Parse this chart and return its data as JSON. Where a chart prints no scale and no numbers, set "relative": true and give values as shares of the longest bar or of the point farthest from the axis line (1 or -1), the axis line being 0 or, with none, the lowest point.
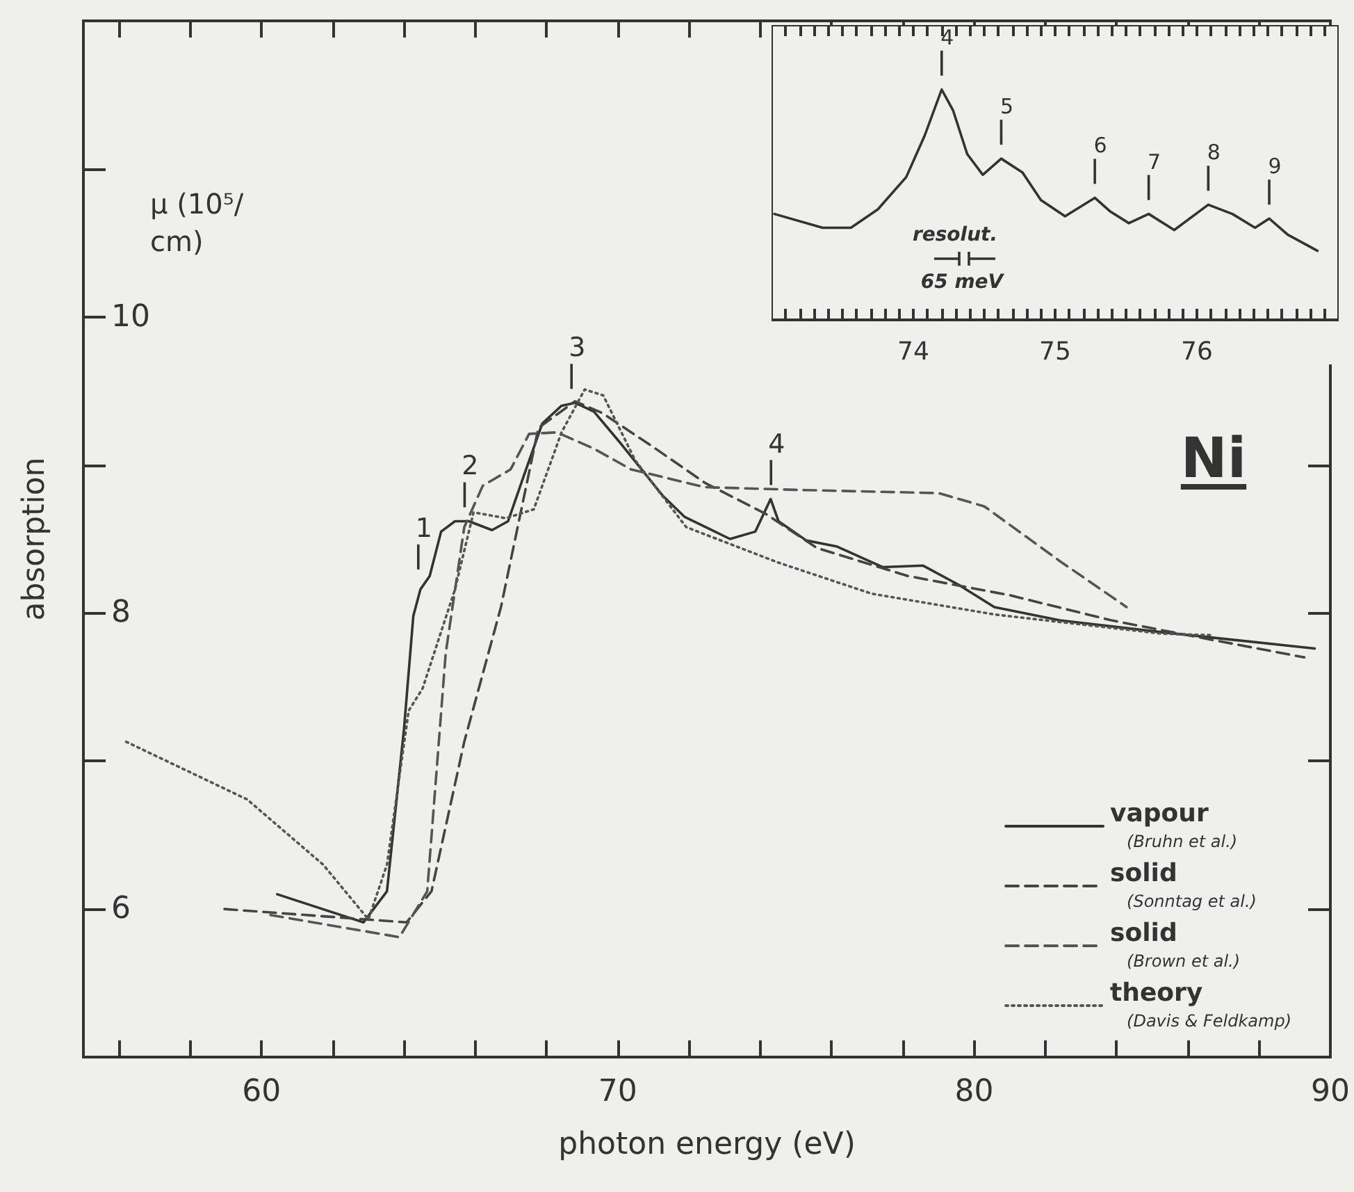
{
  "chart_data": [
    {
      "type": "line",
      "xlabel": "photon energy (eV)",
      "ylabel": "absorption",
      "xlim": [
        55,
        90
      ],
      "xticks": [
        {
          "value": 56,
          "label": null
        },
        {
          "value": 58,
          "label": null
        },
        60,
        {
          "value": 62,
          "label": null
        },
        {
          "value": 64,
          "label": null
        },
        {
          "value": 66,
          "label": null
        },
        {
          "value": 68,
          "label": null
        },
        70,
        {
          "value": 72,
          "label": null
        },
        {
          "value": 74,
          "label": null
        },
        {
          "value": 76,
          "label": null
        },
        {
          "value": 78,
          "label": null
        },
        80,
        {
          "value": 82,
          "label": null
        },
        {
          "value": 84,
          "label": null
        },
        {
          "value": 86,
          "label": null
        },
        {
          "value": 88,
          "label": null
        },
        90
      ],
      "ylim": [
        5,
        12
      ],
      "yticks": [
        6,
        {
          "value": 7,
          "label": null
        },
        8,
        {
          "value": 9,
          "label": null
        },
        10,
        {
          "value": 11,
          "label": null
        }
      ],
      "legend": "bottom right",
      "marker": "none",
      "series": [
        {
          "name": "vapour (Bruhn et al.)",
          "color": "#333333",
          "line_style": "solid",
          "x": [
            60.44,
            62.86,
            63.52,
            64.0,
            64.26,
            64.46,
            64.72,
            65.04,
            65.43,
            65.82,
            66.47,
            66.92,
            67.38,
            67.88,
            68.42,
            68.8,
            69.33,
            70.1,
            71.27,
            71.87,
            73.15,
            73.86,
            74.29,
            74.51,
            75.29,
            76.14,
            77.43,
            78.57,
            79.57,
            80.57,
            82.41,
            85.28,
            89.56
          ],
          "values": [
            6.1,
            5.91,
            6.12,
            7.22,
            7.98,
            8.16,
            8.25,
            8.55,
            8.62,
            8.62,
            8.56,
            8.62,
            8.94,
            9.28,
            9.4,
            9.42,
            9.36,
            9.14,
            8.79,
            8.65,
            8.5,
            8.55,
            8.77,
            8.62,
            8.49,
            8.45,
            8.31,
            8.32,
            8.19,
            8.04,
            7.95,
            7.87,
            7.76
          ]
        },
        {
          "name": "solid (Sonntag et al.)",
          "color": "#444444",
          "line_style": "dashed",
          "x": [
            58.96,
            64.07,
            64.77,
            65.69,
            66.72,
            67.77,
            68.8,
            69.57,
            71.0,
            72.44,
            74.15,
            75.58,
            78.14,
            81.0,
            83.86,
            86.0,
            89.27
          ],
          "values": [
            6.0,
            5.91,
            6.12,
            7.13,
            8.04,
            9.25,
            9.43,
            9.35,
            9.12,
            8.88,
            8.67,
            8.44,
            8.25,
            8.12,
            7.95,
            7.85,
            7.7
          ]
        },
        {
          "name": "solid (Brown et al.)",
          "color": "#555555",
          "line_style": "dashed",
          "x": [
            60.25,
            63.87,
            64.65,
            65.17,
            65.69,
            66.21,
            66.99,
            67.51,
            68.29,
            69.33,
            70.37,
            72.44,
            75.29,
            79.0,
            80.29,
            82.41,
            84.28
          ],
          "values": [
            5.96,
            5.81,
            6.12,
            7.73,
            8.58,
            8.86,
            8.97,
            9.21,
            9.22,
            9.11,
            8.97,
            8.85,
            8.83,
            8.81,
            8.72,
            8.35,
            8.04
          ]
        },
        {
          "name": "theory (Davis & Feldkamp)",
          "color": "#555555",
          "line_style": "dotted",
          "x": [
            56.2,
            59.6,
            61.73,
            63.0,
            63.52,
            64.13,
            64.52,
            65.43,
            65.95,
            66.86,
            67.64,
            68.42,
            69.07,
            69.59,
            70.49,
            71.92,
            74.51,
            77.13,
            80.57,
            85.28,
            86.7
          ],
          "values": [
            7.13,
            6.74,
            6.3,
            5.93,
            6.3,
            7.34,
            7.49,
            8.16,
            8.68,
            8.64,
            8.7,
            9.22,
            9.51,
            9.47,
            9.03,
            8.58,
            8.34,
            8.13,
            7.99,
            7.86,
            7.85
          ]
        }
      ],
      "annotations": [
        "μ (10⁵/cm)",
        "Ni",
        {
          "text": "1",
          "x": 64.4,
          "y": 8.2
        },
        {
          "text": "2",
          "x": 65.7,
          "y": 8.62
        },
        {
          "text": "3",
          "x": 68.7,
          "y": 9.42
        },
        {
          "text": "4",
          "x": 74.3,
          "y": 8.77
        }
      ]
    },
    {
      "type": "line",
      "relative": true,
      "marker": "none",
      "color": "#333333",
      "line_style": "solid",
      "xlim": [
        73,
        77
      ],
      "xticks": [
        {
          "value": 73.1,
          "label": null
        },
        {
          "value": 73.2,
          "label": null
        },
        {
          "value": 73.3,
          "label": null
        },
        {
          "value": 73.4,
          "label": null
        },
        {
          "value": 73.5,
          "label": null
        },
        {
          "value": 73.6,
          "label": null
        },
        {
          "value": 73.7,
          "label": null
        },
        {
          "value": 73.8,
          "label": null
        },
        {
          "value": 73.9,
          "label": null
        },
        74,
        {
          "value": 74.1,
          "label": null
        },
        {
          "value": 74.2,
          "label": null
        },
        {
          "value": 74.3,
          "label": null
        },
        {
          "value": 74.4,
          "label": null
        },
        {
          "value": 74.5,
          "label": null
        },
        {
          "value": 74.6,
          "label": null
        },
        {
          "value": 74.7,
          "label": null
        },
        {
          "value": 74.8,
          "label": null
        },
        {
          "value": 74.9,
          "label": null
        },
        75,
        {
          "value": 75.1,
          "label": null
        },
        {
          "value": 75.2,
          "label": null
        },
        {
          "value": 75.3,
          "label": null
        },
        {
          "value": 75.4,
          "label": null
        },
        {
          "value": 75.5,
          "label": null
        },
        {
          "value": 75.6,
          "label": null
        },
        {
          "value": 75.7,
          "label": null
        },
        {
          "value": 75.8,
          "label": null
        },
        {
          "value": 75.9,
          "label": null
        },
        76,
        {
          "value": 76.1,
          "label": null
        },
        {
          "value": 76.2,
          "label": null
        },
        {
          "value": 76.3,
          "label": null
        },
        {
          "value": 76.4,
          "label": null
        },
        {
          "value": 76.5,
          "label": null
        },
        {
          "value": 76.6,
          "label": null
        },
        {
          "value": 76.7,
          "label": null
        },
        {
          "value": 76.8,
          "label": null
        },
        {
          "value": 76.9,
          "label": null
        }
      ],
      "x": [
        73.02,
        73.36,
        73.56,
        73.75,
        73.95,
        74.08,
        74.2,
        74.28,
        74.38,
        74.49,
        74.62,
        74.77,
        74.9,
        75.07,
        75.28,
        75.39,
        75.52,
        75.66,
        75.84,
        76.08,
        76.25,
        76.41,
        76.51,
        76.64,
        76.85
      ],
      "values": [
        0.46,
        0.4,
        0.4,
        0.48,
        0.62,
        0.8,
        1.0,
        0.91,
        0.72,
        0.63,
        0.7,
        0.64,
        0.52,
        0.45,
        0.53,
        0.47,
        0.42,
        0.46,
        0.39,
        0.5,
        0.46,
        0.4,
        0.44,
        0.37,
        0.3
      ],
      "annotations": [
        "resolut.",
        "65 meV",
        {
          "text": "4",
          "x": 74.2,
          "y": 1.0
        },
        {
          "text": "5",
          "x": 74.62,
          "y": 0.7
        },
        {
          "text": "6",
          "x": 75.28,
          "y": 0.53
        },
        {
          "text": "7",
          "x": 75.66,
          "y": 0.46
        },
        {
          "text": "8",
          "x": 76.08,
          "y": 0.5
        },
        {
          "text": "9",
          "x": 76.51,
          "y": 0.44
        }
      ]
    }
  ]
}
